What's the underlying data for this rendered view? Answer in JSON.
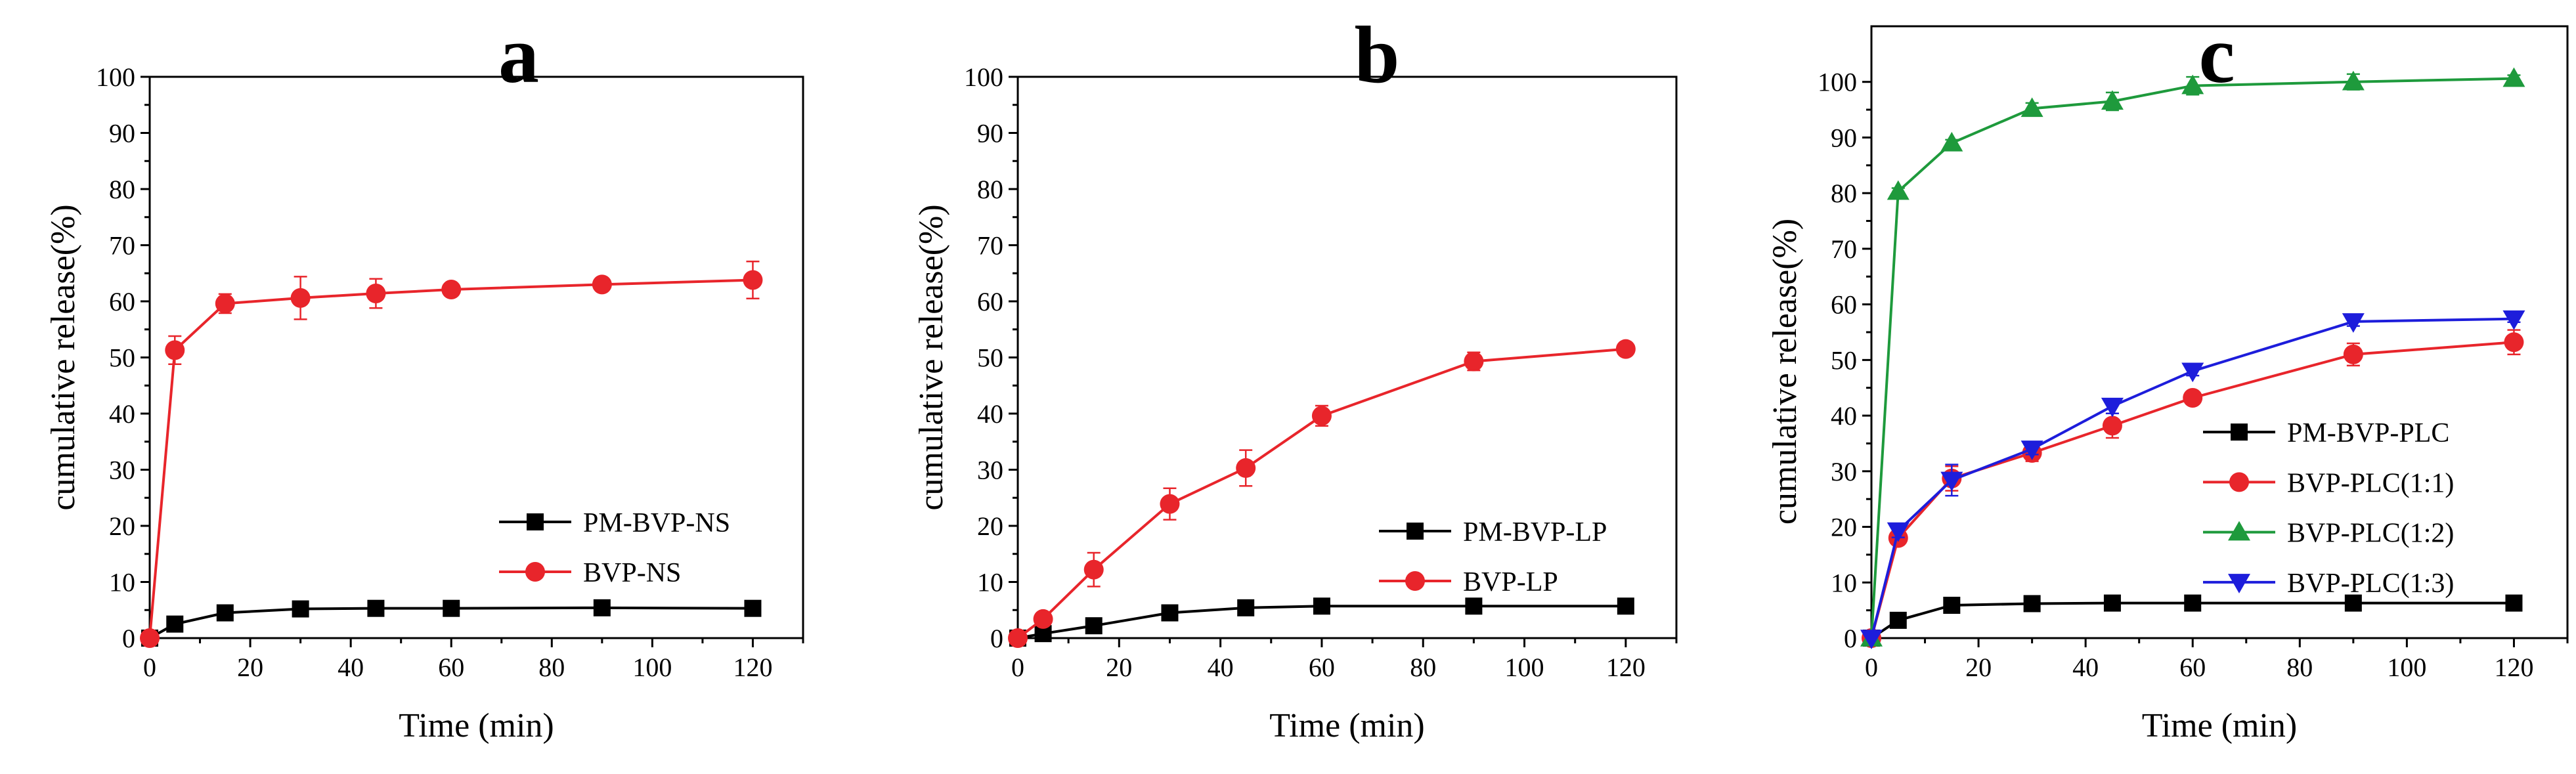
{
  "chart_data": [
    {
      "type": "line",
      "panel": "a",
      "xlabel": "Time (min)",
      "ylabel": "cumulative release(%)",
      "xlim": [
        0,
        130
      ],
      "ylim": [
        0,
        100
      ],
      "xticks": [
        0,
        20,
        40,
        60,
        80,
        100,
        120
      ],
      "yticks": [
        0,
        10,
        20,
        30,
        40,
        50,
        60,
        70,
        80,
        90,
        100
      ],
      "legend_position": "lower-right",
      "series": [
        {
          "name": "PM-BVP-NS",
          "color": "#000000",
          "marker": "square",
          "x": [
            0,
            5,
            15,
            30,
            45,
            60,
            90,
            120
          ],
          "y": [
            0,
            2.5,
            4.5,
            5.2,
            5.3,
            5.3,
            5.4,
            5.3
          ],
          "err": [
            0,
            0.3,
            0.4,
            0.3,
            0.3,
            0.3,
            0.3,
            0.3
          ]
        },
        {
          "name": "BVP-NS",
          "color": "#e8252b",
          "marker": "circle",
          "x": [
            0,
            5,
            15,
            30,
            45,
            60,
            90,
            120
          ],
          "y": [
            0,
            51.3,
            59.6,
            60.6,
            61.4,
            62.1,
            63.0,
            63.8
          ],
          "err": [
            0,
            2.5,
            1.7,
            3.8,
            2.6,
            0.8,
            0.8,
            3.3
          ]
        }
      ]
    },
    {
      "type": "line",
      "panel": "b",
      "xlabel": "Time (min)",
      "ylabel": "cumulative release(%)",
      "xlim": [
        0,
        130
      ],
      "ylim": [
        0,
        100
      ],
      "xticks": [
        0,
        20,
        40,
        60,
        80,
        100,
        120
      ],
      "yticks": [
        0,
        10,
        20,
        30,
        40,
        50,
        60,
        70,
        80,
        90,
        100
      ],
      "legend_position": "lower-right",
      "series": [
        {
          "name": "PM-BVP-LP",
          "color": "#000000",
          "marker": "square",
          "x": [
            0,
            5,
            15,
            30,
            45,
            60,
            90,
            120
          ],
          "y": [
            0,
            0.8,
            2.2,
            4.5,
            5.4,
            5.7,
            5.7,
            5.7
          ],
          "err": [
            0,
            0.3,
            0.4,
            0.4,
            0.3,
            0.3,
            0.3,
            0.3
          ]
        },
        {
          "name": "BVP-LP",
          "color": "#e8252b",
          "marker": "circle",
          "x": [
            0,
            5,
            15,
            30,
            45,
            60,
            90,
            120
          ],
          "y": [
            0,
            3.4,
            12.2,
            23.9,
            30.3,
            39.6,
            49.3,
            51.5
          ],
          "err": [
            0,
            0.8,
            3.0,
            2.8,
            3.2,
            1.8,
            1.6,
            0.6
          ]
        }
      ]
    },
    {
      "type": "line",
      "panel": "c",
      "xlabel": "Time (min)",
      "ylabel": "cumulative release(%)",
      "xlim": [
        0,
        130
      ],
      "ylim": [
        0,
        110
      ],
      "xticks": [
        0,
        20,
        40,
        60,
        80,
        100,
        120
      ],
      "yticks": [
        0,
        10,
        20,
        30,
        40,
        50,
        60,
        70,
        80,
        90,
        100
      ],
      "legend_position": "lower-right",
      "series": [
        {
          "name": "PM-BVP-PLC",
          "color": "#000000",
          "marker": "square",
          "x": [
            0,
            5,
            15,
            30,
            45,
            60,
            90,
            120
          ],
          "y": [
            0,
            3.2,
            5.9,
            6.2,
            6.3,
            6.3,
            6.3,
            6.3
          ],
          "err": [
            0,
            0.4,
            0.5,
            0.4,
            0.4,
            0.4,
            0.4,
            0.4
          ]
        },
        {
          "name": "BVP-PLC(1:1)",
          "color": "#e8252b",
          "marker": "circle",
          "x": [
            0,
            5,
            15,
            30,
            45,
            60,
            90,
            120
          ],
          "y": [
            0,
            18.0,
            28.7,
            33.3,
            38.2,
            43.2,
            51.0,
            53.2
          ],
          "err": [
            0,
            1.2,
            2.2,
            1.5,
            2.2,
            1.0,
            2.0,
            2.2
          ]
        },
        {
          "name": "BVP-PLC(1:2)",
          "color": "#1e9a3c",
          "marker": "triangle-up",
          "x": [
            0,
            5,
            15,
            30,
            45,
            60,
            90,
            120
          ],
          "y": [
            0,
            80.3,
            89.0,
            95.2,
            96.5,
            99.3,
            100.0,
            100.6
          ],
          "err": [
            0,
            0.6,
            0.6,
            1.0,
            1.6,
            1.6,
            1.4,
            0.6
          ]
        },
        {
          "name": "BVP-PLC(1:3)",
          "color": "#1d1ddb",
          "marker": "triangle-down",
          "x": [
            0,
            5,
            15,
            30,
            45,
            60,
            90,
            120
          ],
          "y": [
            0,
            19.3,
            28.4,
            34.0,
            41.7,
            48.0,
            56.9,
            57.4
          ],
          "err": [
            0,
            1.2,
            2.8,
            1.0,
            1.3,
            0.8,
            0.8,
            0.6
          ]
        }
      ]
    }
  ]
}
